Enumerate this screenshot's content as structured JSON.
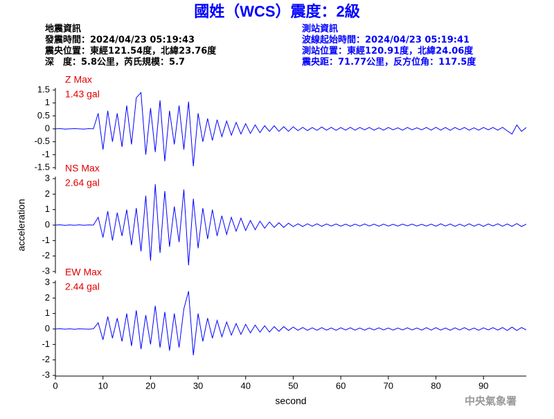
{
  "header": {
    "title": "國姓（WCS）震度：2級",
    "left": [
      "地震資訊",
      "發震時間：2024/04/23 05:19:43",
      "震央位置：東經121.54度，北緯23.76度",
      "深　度：5.8公里，芮氏規模：5.7"
    ],
    "right": [
      "測站資訊",
      "波線起始時間：2024/04/23 05:19:41",
      "測站位置：東經120.91度，北緯24.06度",
      "震央距：71.77公里，反方位角：117.5度"
    ]
  },
  "footer": "中央氣象署",
  "chart_data": [
    {
      "type": "line",
      "title": "Z Max",
      "subtitle": "1.43 gal",
      "xlim": [
        0,
        99
      ],
      "ylim": [
        -1.5,
        1.5
      ],
      "yticks": [
        -1.5,
        -1,
        -0.5,
        0,
        0.5,
        1,
        1.5
      ],
      "x": [
        0,
        1,
        2,
        3,
        4,
        5,
        6,
        7,
        8,
        9,
        10,
        11,
        12,
        13,
        14,
        15,
        16,
        17,
        18,
        19,
        20,
        21,
        22,
        23,
        24,
        25,
        26,
        27,
        28,
        29,
        30,
        31,
        32,
        33,
        34,
        35,
        36,
        37,
        38,
        39,
        40,
        41,
        42,
        43,
        44,
        45,
        46,
        47,
        48,
        49,
        50,
        51,
        52,
        53,
        54,
        55,
        56,
        57,
        58,
        59,
        60,
        61,
        62,
        63,
        64,
        65,
        66,
        67,
        68,
        69,
        70,
        71,
        72,
        73,
        74,
        75,
        76,
        77,
        78,
        79,
        80,
        81,
        82,
        83,
        84,
        85,
        86,
        87,
        88,
        89,
        90,
        91,
        92,
        93,
        94,
        95,
        96,
        97,
        98,
        99
      ],
      "series": [
        {
          "color": "#0000ff",
          "values": [
            0,
            0.01,
            -0.01,
            0,
            0.01,
            0,
            -0.01,
            0.01,
            0,
            0.6,
            -0.8,
            0.7,
            -0.5,
            0.6,
            -0.7,
            0.9,
            -0.6,
            1.2,
            1.4,
            -1.0,
            0.8,
            -0.9,
            1.1,
            -1.25,
            0.7,
            -0.6,
            0.9,
            -0.8,
            1.05,
            -1.45,
            0.6,
            -0.5,
            0.4,
            -0.45,
            0.35,
            -0.3,
            0.3,
            -0.25,
            0.25,
            -0.2,
            0.2,
            -0.18,
            0.15,
            -0.15,
            0.12,
            -0.1,
            0.12,
            -0.1,
            0.08,
            -0.1,
            0.08,
            -0.07,
            0.06,
            -0.07,
            0.05,
            -0.06,
            0.07,
            -0.05,
            0.06,
            -0.06,
            0.05,
            -0.05,
            0.06,
            -0.05,
            0.05,
            -0.04,
            0.05,
            -0.05,
            0.04,
            -0.05,
            0.05,
            -0.04,
            0.04,
            -0.05,
            0.05,
            -0.04,
            0.04,
            -0.04,
            0.05,
            -0.05,
            0.06,
            -0.05,
            0.05,
            -0.06,
            0.05,
            -0.04,
            0.05,
            -0.05,
            0.04,
            -0.05,
            0.05,
            -0.04,
            0.05,
            -0.05,
            0.06,
            -0.08,
            -0.2,
            0.15,
            -0.1,
            0.05
          ]
        }
      ]
    },
    {
      "type": "line",
      "title": "NS Max",
      "subtitle": "2.64 gal",
      "ylabel": "acceleration",
      "xlim": [
        0,
        99
      ],
      "ylim": [
        -3,
        3
      ],
      "yticks": [
        -3,
        -2,
        -1,
        0,
        1,
        2,
        3
      ],
      "x": [
        0,
        1,
        2,
        3,
        4,
        5,
        6,
        7,
        8,
        9,
        10,
        11,
        12,
        13,
        14,
        15,
        16,
        17,
        18,
        19,
        20,
        21,
        22,
        23,
        24,
        25,
        26,
        27,
        28,
        29,
        30,
        31,
        32,
        33,
        34,
        35,
        36,
        37,
        38,
        39,
        40,
        41,
        42,
        43,
        44,
        45,
        46,
        47,
        48,
        49,
        50,
        51,
        52,
        53,
        54,
        55,
        56,
        57,
        58,
        59,
        60,
        61,
        62,
        63,
        64,
        65,
        66,
        67,
        68,
        69,
        70,
        71,
        72,
        73,
        74,
        75,
        76,
        77,
        78,
        79,
        80,
        81,
        82,
        83,
        84,
        85,
        86,
        87,
        88,
        89,
        90,
        91,
        92,
        93,
        94,
        95,
        96,
        97,
        98,
        99
      ],
      "series": [
        {
          "color": "#0000ff",
          "values": [
            0,
            0.02,
            -0.02,
            0.01,
            -0.01,
            0.02,
            -0.01,
            0.01,
            0,
            0.5,
            -0.8,
            0.9,
            -1.0,
            0.8,
            -0.7,
            1.0,
            -1.3,
            1.1,
            -1.7,
            1.9,
            -2.3,
            2.64,
            -1.8,
            2.2,
            -1.4,
            1.2,
            -1.1,
            2.3,
            -2.6,
            1.7,
            -1.5,
            1.1,
            -0.9,
            1.0,
            -0.7,
            0.6,
            -0.6,
            0.5,
            -0.4,
            0.45,
            -0.35,
            0.3,
            -0.3,
            0.25,
            -0.2,
            0.2,
            -0.15,
            0.15,
            -0.15,
            0.12,
            -0.1,
            0.08,
            -0.09,
            0.08,
            -0.07,
            0.08,
            -0.08,
            0.07,
            -0.06,
            0.07,
            -0.07,
            0.06,
            -0.07,
            0.06,
            -0.06,
            0.07,
            -0.06,
            0.06,
            -0.07,
            0.06,
            -0.06,
            0.05,
            -0.06,
            0.06,
            -0.05,
            0.06,
            -0.06,
            0.05,
            -0.06,
            0.06,
            -0.07,
            0.08,
            -0.06,
            0.07,
            -0.08,
            0.06,
            -0.07,
            0.08,
            -0.07,
            0.06,
            -0.08,
            0.07,
            -0.06,
            0.08,
            -0.07,
            0.07,
            -0.08,
            0.1,
            -0.09,
            0.06
          ]
        }
      ]
    },
    {
      "type": "line",
      "title": "EW Max",
      "subtitle": "2.44 gal",
      "xlabel": "second",
      "xlim": [
        0,
        99
      ],
      "ylim": [
        -3,
        3
      ],
      "yticks": [
        -3,
        -2,
        -1,
        0,
        1,
        2,
        3
      ],
      "xticks": [
        0,
        10,
        20,
        30,
        40,
        50,
        60,
        70,
        80,
        90
      ],
      "x": [
        0,
        1,
        2,
        3,
        4,
        5,
        6,
        7,
        8,
        9,
        10,
        11,
        12,
        13,
        14,
        15,
        16,
        17,
        18,
        19,
        20,
        21,
        22,
        23,
        24,
        25,
        26,
        27,
        28,
        29,
        30,
        31,
        32,
        33,
        34,
        35,
        36,
        37,
        38,
        39,
        40,
        41,
        42,
        43,
        44,
        45,
        46,
        47,
        48,
        49,
        50,
        51,
        52,
        53,
        54,
        55,
        56,
        57,
        58,
        59,
        60,
        61,
        62,
        63,
        64,
        65,
        66,
        67,
        68,
        69,
        70,
        71,
        72,
        73,
        74,
        75,
        76,
        77,
        78,
        79,
        80,
        81,
        82,
        83,
        84,
        85,
        86,
        87,
        88,
        89,
        90,
        91,
        92,
        93,
        94,
        95,
        96,
        97,
        98,
        99
      ],
      "series": [
        {
          "color": "#0000ff",
          "values": [
            0,
            0.02,
            -0.01,
            0.01,
            -0.02,
            0.01,
            0,
            -0.01,
            0.01,
            0.4,
            -0.7,
            0.8,
            -0.6,
            0.7,
            -0.8,
            1.0,
            -1.1,
            1.2,
            -1.3,
            0.9,
            -1.0,
            1.5,
            -1.2,
            1.1,
            -1.4,
            1.0,
            -1.2,
            1.3,
            2.44,
            -1.7,
            1.0,
            -0.8,
            0.7,
            -0.6,
            0.55,
            -0.5,
            0.45,
            -0.4,
            0.35,
            -0.35,
            0.3,
            -0.25,
            0.25,
            -0.2,
            0.2,
            -0.2,
            0.15,
            -0.15,
            0.15,
            -0.1,
            0.12,
            -0.08,
            0.09,
            -0.08,
            0.07,
            -0.08,
            0.08,
            -0.07,
            0.06,
            -0.08,
            0.07,
            -0.06,
            0.07,
            -0.07,
            0.06,
            -0.07,
            0.06,
            -0.06,
            0.07,
            -0.06,
            0.06,
            -0.07,
            0.06,
            -0.06,
            0.07,
            -0.06,
            0.06,
            -0.07,
            0.08,
            -0.07,
            0.08,
            -0.07,
            0.06,
            -0.08,
            0.07,
            -0.06,
            0.08,
            -0.07,
            0.06,
            -0.08,
            0.07,
            -0.06,
            0.08,
            -0.07,
            0.09,
            -0.1,
            0.12,
            -0.1,
            0.09,
            -0.06
          ]
        }
      ]
    }
  ]
}
